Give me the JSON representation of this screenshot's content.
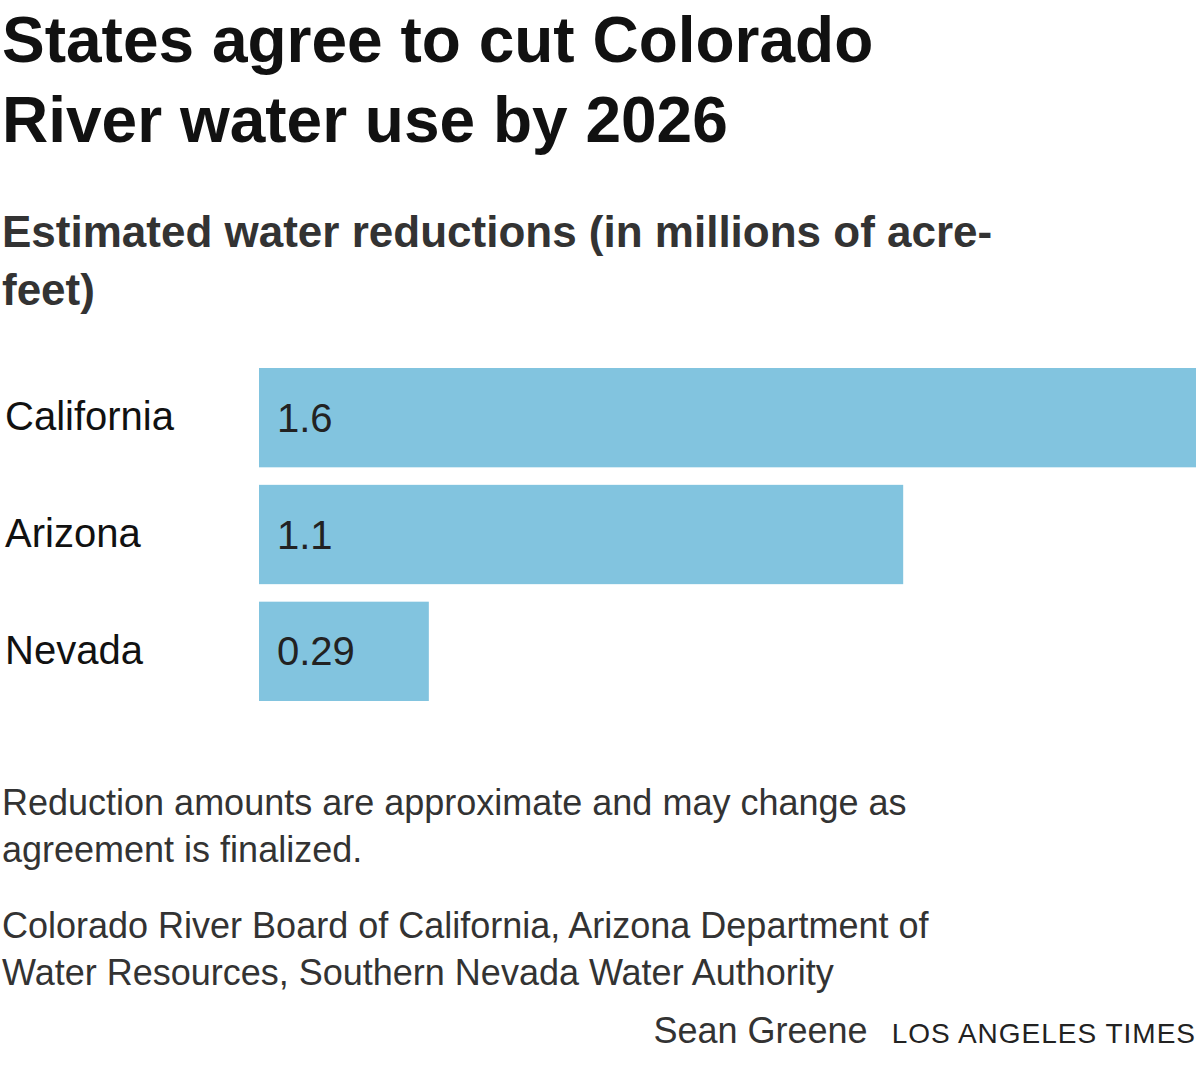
{
  "chart_data": {
    "type": "bar",
    "orientation": "horizontal",
    "title": "States agree to cut Colorado River water use by 2026",
    "subtitle": "Estimated water reductions (in millions of acre-feet)",
    "categories": [
      "California",
      "Arizona",
      "Nevada"
    ],
    "values": [
      1.6,
      1.1,
      0.29
    ],
    "color": "#82c4df",
    "xlim": [
      0,
      1.6
    ],
    "data_labels": true,
    "tick_labels": "y",
    "note": "Reduction amounts are approximate and may change as agreement is finalized.",
    "source": "Colorado River Board of California, Arizona Department of Water Resources, Southern Nevada Water Authority",
    "byline": "Sean Greene",
    "publisher": "LOS ANGELES TIMES"
  }
}
